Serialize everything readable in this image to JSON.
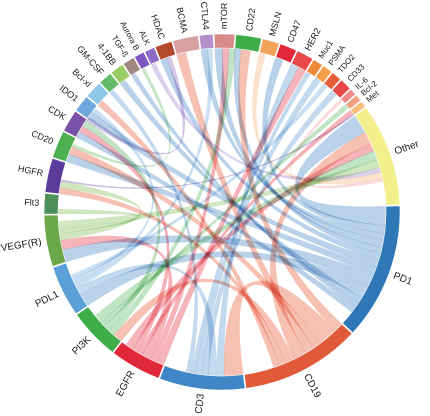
{
  "chart_data": {
    "type": "chord",
    "title": "",
    "segments": [
      {
        "name": "PD1",
        "value": 8.0,
        "color": "#2f78b8",
        "ribbon": "#8fb7dc"
      },
      {
        "name": "CD19",
        "value": 7.0,
        "color": "#e05a3a",
        "ribbon": "#f09a85"
      },
      {
        "name": "CD3",
        "value": 5.0,
        "color": "#3f86c6",
        "ribbon": "#9cc2e3"
      },
      {
        "name": "EGFR",
        "value": 3.0,
        "color": "#e0283a",
        "ribbon": "#f08590"
      },
      {
        "name": "PI3K",
        "value": 3.0,
        "color": "#3fae4a",
        "ribbon": "#9bd4a0"
      },
      {
        "name": "PDL1",
        "value": 3.0,
        "color": "#5aa0d6",
        "ribbon": "#a9cdea"
      },
      {
        "name": "VEGF(R)",
        "value": 3.0,
        "color": "#6aa84a",
        "ribbon": "#b2d69a"
      },
      {
        "name": "Flt3",
        "value": 1.2,
        "color": "#4b8f5a",
        "ribbon": "#9fc8a8"
      },
      {
        "name": "HGFR",
        "value": 2.0,
        "color": "#5b3c9a",
        "ribbon": "#a996cf"
      },
      {
        "name": "CD20",
        "value": 1.6,
        "color": "#4caf50",
        "ribbon": "#a3d6a5"
      },
      {
        "name": "CDK",
        "value": 1.3,
        "color": "#7a52a8",
        "ribbon": "#bba6d6"
      },
      {
        "name": "IDO1",
        "value": 1.0,
        "color": "#6fa8dc",
        "ribbon": "#b4d2ee"
      },
      {
        "name": "Bcl-xl",
        "value": 1.0,
        "color": "#8fc7e8",
        "ribbon": "#c6e3f4"
      },
      {
        "name": "GM-CSF",
        "value": 0.8,
        "color": "#66bb6a",
        "ribbon": "#b0dcb2"
      },
      {
        "name": "4-1BB",
        "value": 0.8,
        "color": "#9ccc65",
        "ribbon": "#cde6b0"
      },
      {
        "name": "TGF-ß",
        "value": 0.7,
        "color": "#a1887f",
        "ribbon": "#d2c4bf"
      },
      {
        "name": "Aurora B",
        "value": 0.6,
        "color": "#7e57c2",
        "ribbon": "#bfabe1"
      },
      {
        "name": "ALK",
        "value": 0.6,
        "color": "#8e6bc4",
        "ribbon": "#c7b5e2"
      },
      {
        "name": "HDAC",
        "value": 1.0,
        "color": "#b34a2c",
        "ribbon": "#d99f8f"
      },
      {
        "name": "BCMA",
        "value": 1.5,
        "color": "#d9a0a0",
        "ribbon": "#ecd0d0"
      },
      {
        "name": "CTLA4",
        "value": 0.8,
        "color": "#b58fc9",
        "ribbon": "#dac7e4"
      },
      {
        "name": "mTOR",
        "value": 1.2,
        "color": "#d98b8b",
        "ribbon": "#ecc5c5"
      },
      {
        "name": "CD22",
        "value": 1.5,
        "color": "#3fae4a",
        "ribbon": "#9fd6a4"
      },
      {
        "name": "MSLN",
        "value": 1.0,
        "color": "#f2a45a",
        "ribbon": "#f8d1ac"
      },
      {
        "name": "CD47",
        "value": 1.0,
        "color": "#e0283a",
        "ribbon": "#f08590"
      },
      {
        "name": "HER2",
        "value": 1.0,
        "color": "#e8484a",
        "ribbon": "#f3a2a3"
      },
      {
        "name": "Muc1",
        "value": 0.6,
        "color": "#f08a3a",
        "ribbon": "#f7c49c"
      },
      {
        "name": "PSMA",
        "value": 0.6,
        "color": "#f4a04a",
        "ribbon": "#f9cfa4"
      },
      {
        "name": "TDO2",
        "value": 0.6,
        "color": "#e8603a",
        "ribbon": "#f3af9c"
      },
      {
        "name": "CD33",
        "value": 0.7,
        "color": "#e8484a",
        "ribbon": "#f3a2a3"
      },
      {
        "name": "IL-6",
        "value": 0.4,
        "color": "#f08a8a",
        "ribbon": "#f7c4c4"
      },
      {
        "name": "Bcl-2",
        "value": 0.4,
        "color": "#f4a080",
        "ribbon": "#f9cfbf"
      },
      {
        "name": "Met",
        "value": 0.4,
        "color": "#f7c07a",
        "ribbon": "#fbe0bc"
      },
      {
        "name": "Other",
        "value": 6.0,
        "color": "#f3ef8a",
        "ribbon": "#f8f5c2"
      }
    ],
    "links": [
      [
        "PD1",
        "Other",
        1.2
      ],
      [
        "PD1",
        "CD47",
        0.5
      ],
      [
        "PD1",
        "CTLA4",
        0.4
      ],
      [
        "PD1",
        "mTOR",
        0.5
      ],
      [
        "PD1",
        "CD22",
        0.4
      ],
      [
        "PD1",
        "HDAC",
        0.4
      ],
      [
        "PD1",
        "IDO1",
        0.5
      ],
      [
        "PD1",
        "CD20",
        0.5
      ],
      [
        "PD1",
        "VEGF(R)",
        0.8
      ],
      [
        "PD1",
        "PDL1",
        0.8
      ],
      [
        "PD1",
        "4-1BB",
        0.4
      ],
      [
        "PD1",
        "TGF-ß",
        0.3
      ],
      [
        "PD1",
        "CDK",
        0.4
      ],
      [
        "CD19",
        "CD22",
        0.6
      ],
      [
        "CD19",
        "CD3",
        1.2
      ],
      [
        "CD19",
        "CD20",
        0.5
      ],
      [
        "CD19",
        "BCMA",
        0.6
      ],
      [
        "CD19",
        "Other",
        0.8
      ],
      [
        "CD19",
        "PI3K",
        0.6
      ],
      [
        "CD19",
        "HGFR",
        0.4
      ],
      [
        "CD19",
        "Bcl-xl",
        0.4
      ],
      [
        "CD3",
        "HER2",
        0.5
      ],
      [
        "CD3",
        "PDL1",
        0.5
      ],
      [
        "CD3",
        "CD33",
        0.4
      ],
      [
        "CD3",
        "PSMA",
        0.4
      ],
      [
        "CD3",
        "Muc1",
        0.3
      ],
      [
        "CD3",
        "GM-CSF",
        0.3
      ],
      [
        "EGFR",
        "HER2",
        0.5
      ],
      [
        "EGFR",
        "mTOR",
        0.4
      ],
      [
        "EGFR",
        "VEGF(R)",
        0.6
      ],
      [
        "EGFR",
        "Met",
        0.3
      ],
      [
        "EGFR",
        "CDK",
        0.4
      ],
      [
        "EGFR",
        "Other",
        0.5
      ],
      [
        "PI3K",
        "mTOR",
        0.4
      ],
      [
        "PI3K",
        "CDK",
        0.4
      ],
      [
        "PI3K",
        "Bcl-2",
        0.3
      ],
      [
        "PI3K",
        "Other",
        0.6
      ],
      [
        "PDL1",
        "CTLA4",
        0.3
      ],
      [
        "PDL1",
        "IDO1",
        0.3
      ],
      [
        "PDL1",
        "TDO2",
        0.3
      ],
      [
        "VEGF(R)",
        "HGFR",
        0.4
      ],
      [
        "VEGF(R)",
        "Flt3",
        0.3
      ],
      [
        "VEGF(R)",
        "Other",
        0.5
      ],
      [
        "HGFR",
        "Met",
        0.1
      ],
      [
        "CD20",
        "Aurora B",
        0.2
      ],
      [
        "CDK",
        "HDAC",
        0.3
      ],
      [
        "ALK",
        "Other",
        0.3
      ],
      [
        "MSLN",
        "Other",
        0.4
      ],
      [
        "IL-6",
        "Other",
        0.2
      ]
    ]
  }
}
